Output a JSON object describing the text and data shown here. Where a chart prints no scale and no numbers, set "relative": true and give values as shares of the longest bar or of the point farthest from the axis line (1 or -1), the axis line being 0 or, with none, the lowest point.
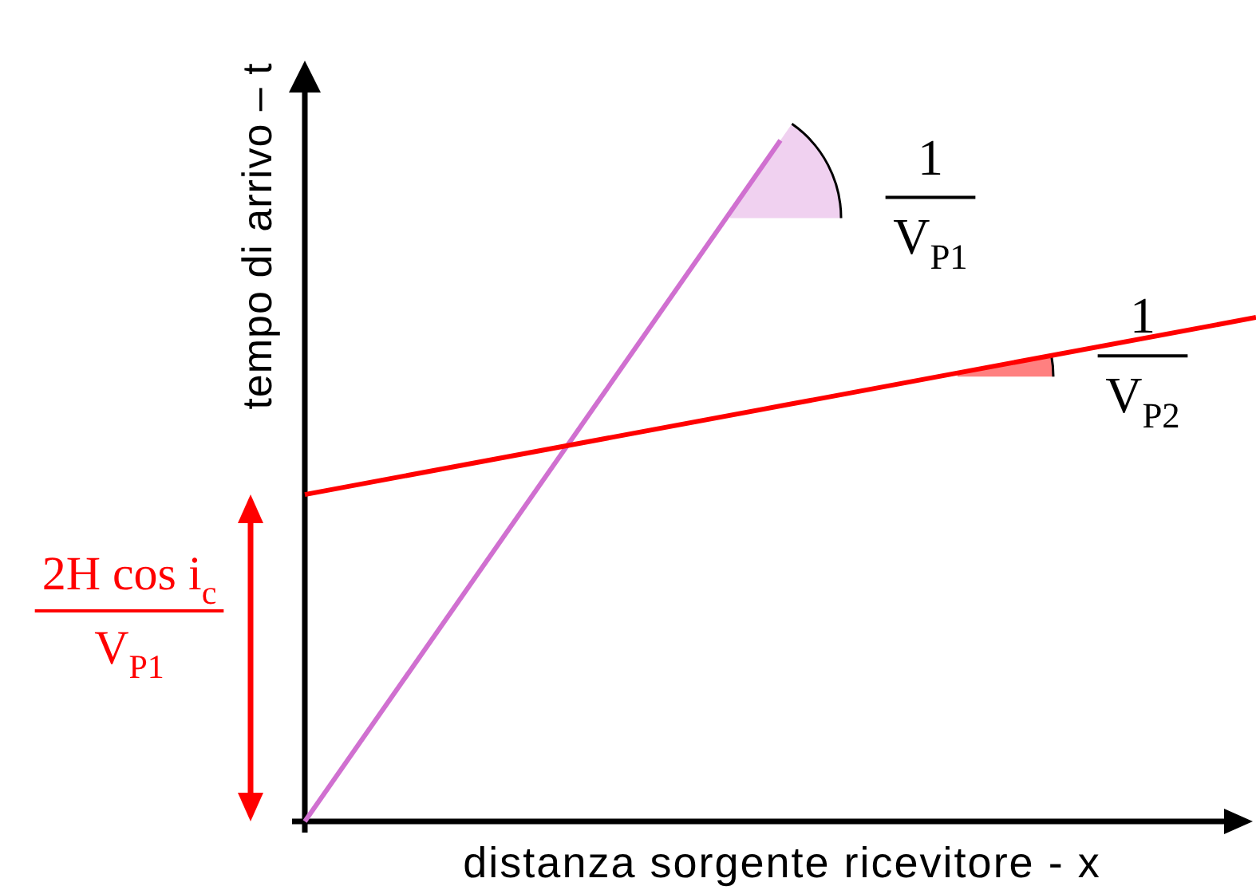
{
  "chart_data": {
    "type": "line",
    "xlabel": "distanza sorgente ricevitore - x",
    "ylabel": "tempo di arrivo – t",
    "categories": [
      null,
      null,
      null
    ],
    "relative": true,
    "series": [
      {
        "color": "#d070d0",
        "values": [
          0,
          1,
          null
        ]
      },
      {
        "color": "#ff0000",
        "values": [
          0.48,
          0.61,
          0.74
        ]
      }
    ],
    "annotations": [
      "1",
      "V$_{P1}$",
      "1",
      "V$_{P2}$",
      "2H cos i$_{c}$",
      "V$_{P1}$"
    ]
  }
}
